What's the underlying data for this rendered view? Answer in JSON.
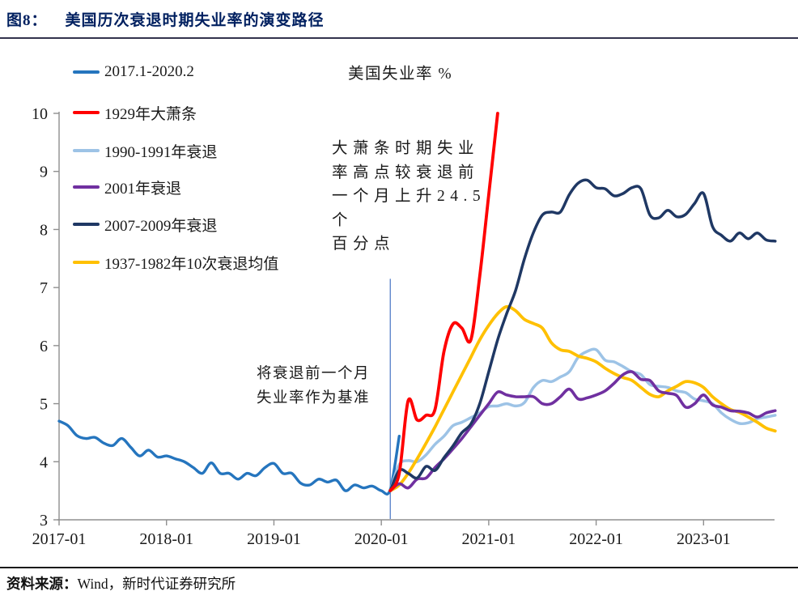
{
  "header": {
    "figure_label": "图8：",
    "title": "美国历次衰退时期失业率的演变路径"
  },
  "chart_data": {
    "type": "line",
    "title": "美国失业率 %",
    "xlabel": "",
    "ylabel": "",
    "ylim": [
      3,
      10
    ],
    "y_ticks": [
      3,
      4,
      5,
      6,
      7,
      8,
      9,
      10
    ],
    "x_ticks": [
      {
        "label": "2017-01",
        "month": 0
      },
      {
        "label": "2018-01",
        "month": 12
      },
      {
        "label": "2019-01",
        "month": 24
      },
      {
        "label": "2020-01",
        "month": 36
      },
      {
        "label": "2021-01",
        "month": 48
      },
      {
        "label": "2022-01",
        "month": 60
      },
      {
        "label": "2023-01",
        "month": 72
      }
    ],
    "x_unit": "months since 2017-01, monthly data",
    "grid": false,
    "legend_position": "top-left",
    "baseline_marker": {
      "month": 37,
      "value_from": 3,
      "value_to": 7.15,
      "color": "#4472C4"
    },
    "draw_order": [
      0,
      2,
      5,
      3,
      4,
      1
    ],
    "series": [
      {
        "name": "2017.1-2020.2",
        "color": "#2575BE",
        "width": 3.4,
        "start_month": 0,
        "values": [
          4.7,
          4.62,
          4.45,
          4.4,
          4.42,
          4.32,
          4.28,
          4.4,
          4.25,
          4.1,
          4.2,
          4.08,
          4.1,
          4.05,
          4.0,
          3.9,
          3.8,
          3.98,
          3.8,
          3.8,
          3.7,
          3.8,
          3.76,
          3.9,
          3.97,
          3.8,
          3.8,
          3.63,
          3.6,
          3.7,
          3.65,
          3.68,
          3.5,
          3.6,
          3.55,
          3.58,
          3.5,
          3.52,
          4.44
        ]
      },
      {
        "name": "1929年大萧条",
        "color": "#FF0000",
        "width": 3.8,
        "start_month": 37,
        "values": [
          3.5,
          3.8,
          5.05,
          4.72,
          4.8,
          4.9,
          5.9,
          6.37,
          6.3,
          6.1,
          7.2,
          8.6,
          10.0
        ]
      },
      {
        "name": "1990-1991年衰退",
        "color": "#9DC3E6",
        "width": 3.5,
        "start_month": 37,
        "values": [
          3.5,
          3.95,
          4.02,
          4.0,
          4.12,
          4.3,
          4.44,
          4.62,
          4.68,
          4.76,
          4.84,
          4.95,
          4.96,
          5.0,
          4.96,
          5.02,
          5.28,
          5.4,
          5.38,
          5.46,
          5.55,
          5.8,
          5.9,
          5.93,
          5.75,
          5.72,
          5.64,
          5.55,
          5.5,
          5.33,
          5.3,
          5.28,
          5.22,
          5.19,
          5.08,
          5.05,
          5.0,
          4.84,
          4.73,
          4.66,
          4.67,
          4.74,
          4.77,
          4.8
        ]
      },
      {
        "name": "2001年衰退",
        "color": "#7030A0",
        "width": 3.6,
        "start_month": 37,
        "values": [
          3.5,
          3.62,
          3.55,
          3.7,
          3.72,
          3.9,
          4.05,
          4.22,
          4.4,
          4.6,
          4.8,
          5.0,
          5.2,
          5.15,
          5.12,
          5.12,
          5.12,
          5.0,
          5.0,
          5.12,
          5.25,
          5.08,
          5.1,
          5.15,
          5.22,
          5.35,
          5.5,
          5.55,
          5.42,
          5.4,
          5.22,
          5.18,
          5.14,
          4.94,
          5.0,
          5.15,
          4.98,
          4.94,
          4.88,
          4.87,
          4.84,
          4.77,
          4.84,
          4.88
        ]
      },
      {
        "name": "2007-2009年衰退",
        "color": "#1F3864",
        "width": 3.5,
        "start_month": 37,
        "values": [
          3.5,
          3.85,
          3.8,
          3.72,
          3.92,
          3.85,
          4.07,
          4.27,
          4.5,
          4.65,
          5.0,
          5.55,
          6.1,
          6.55,
          6.95,
          7.5,
          7.95,
          8.25,
          8.3,
          8.3,
          8.6,
          8.8,
          8.85,
          8.72,
          8.7,
          8.58,
          8.62,
          8.72,
          8.7,
          8.25,
          8.2,
          8.33,
          8.22,
          8.26,
          8.45,
          8.62,
          8.05,
          7.9,
          7.8,
          7.94,
          7.84,
          7.94,
          7.82,
          7.8
        ]
      },
      {
        "name": "1937-1982年10次衰退均值",
        "color": "#FFC000",
        "width": 3.8,
        "start_month": 37,
        "values": [
          3.5,
          3.6,
          3.8,
          4.05,
          4.32,
          4.6,
          4.9,
          5.2,
          5.5,
          5.8,
          6.1,
          6.35,
          6.55,
          6.67,
          6.6,
          6.45,
          6.38,
          6.3,
          6.05,
          5.93,
          5.9,
          5.82,
          5.78,
          5.72,
          5.61,
          5.52,
          5.45,
          5.4,
          5.28,
          5.16,
          5.12,
          5.22,
          5.3,
          5.38,
          5.36,
          5.28,
          5.12,
          5.0,
          4.9,
          4.85,
          4.77,
          4.68,
          4.58,
          4.53
        ]
      }
    ],
    "annotations": [
      {
        "id": "depression-note",
        "text": "大萧条时期失业\n率高点较衰退前\n一个月上升24.5个\n百分点"
      },
      {
        "id": "baseline-note",
        "text": "将衰退前一个月\n失业率作为基准"
      }
    ]
  },
  "footer": {
    "source_label": "资料来源：",
    "source_text": "Wind，新时代证券研究所"
  }
}
